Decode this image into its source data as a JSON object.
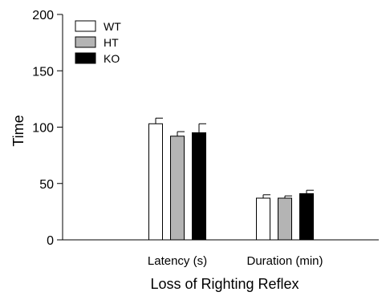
{
  "chart_data": {
    "type": "bar",
    "title": "",
    "xlabel": "Loss of Righting Reflex",
    "ylabel": "Time",
    "ylim": [
      0,
      200
    ],
    "yticks": [
      0,
      50,
      100,
      150,
      200
    ],
    "categories": [
      "Latency (s)",
      "Duration (min)"
    ],
    "grid": false,
    "legend_position": "top-left",
    "series": [
      {
        "name": "WT",
        "color": "#ffffff",
        "values": [
          103,
          37
        ],
        "errors": [
          5,
          3
        ]
      },
      {
        "name": "HT",
        "color": "#b4b4b4",
        "values": [
          92,
          37
        ],
        "errors": [
          4,
          2
        ]
      },
      {
        "name": "KO",
        "color": "#000000",
        "values": [
          95,
          41
        ],
        "errors": [
          8,
          3
        ]
      }
    ]
  }
}
